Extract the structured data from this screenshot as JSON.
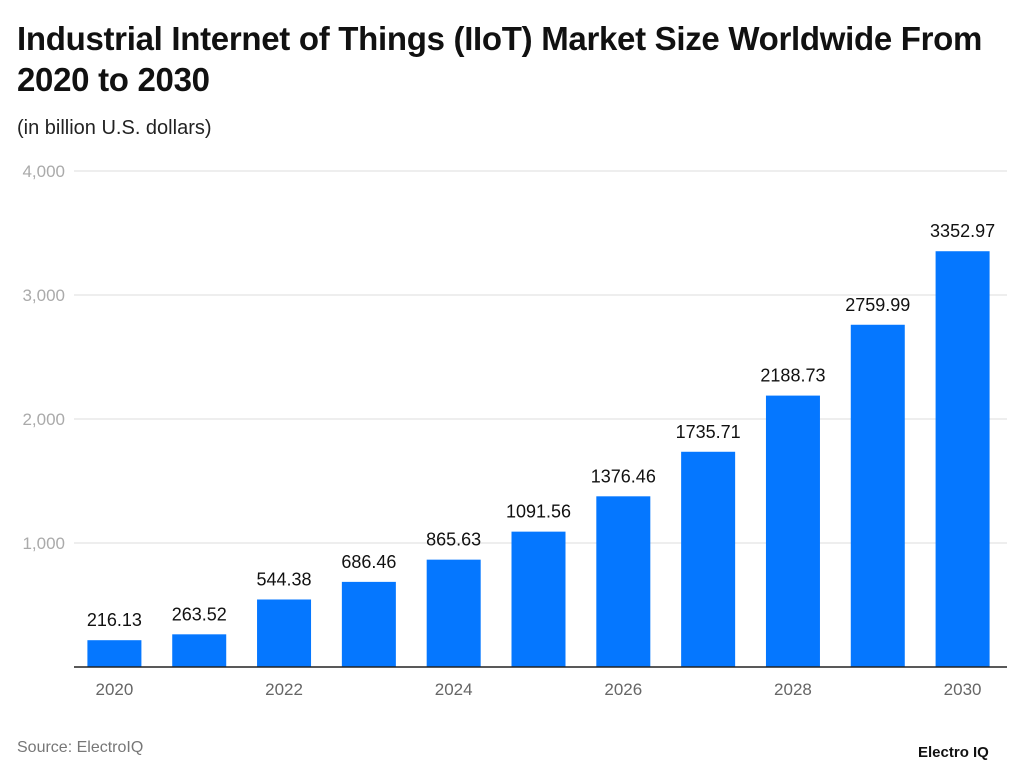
{
  "title": "Industrial Internet of Things (IIoT) Market Size Worldwide From 2020 to 2030",
  "subtitle": "(in billion U.S. dollars)",
  "source": "Source: ElectroIQ",
  "logo": "Electro IQ",
  "chart_data": {
    "type": "bar",
    "title": "Industrial Internet of Things (IIoT) Market Size Worldwide From 2020 to 2030",
    "subtitle": "(in billion U.S. dollars)",
    "categories": [
      "2020",
      "2021",
      "2022",
      "2023",
      "2024",
      "2025",
      "2026",
      "2027",
      "2028",
      "2029",
      "2030"
    ],
    "values": [
      216.13,
      263.52,
      544.38,
      686.46,
      865.63,
      1091.56,
      1376.46,
      1735.71,
      2188.73,
      2759.99,
      3352.97
    ],
    "data_labels": [
      "216.13",
      "263.52",
      "544.38",
      "686.46",
      "865.63",
      "1091.56",
      "1376.46",
      "1735.71",
      "2188.73",
      "2759.99",
      "3352.97"
    ],
    "x_tick_labels": [
      "2020",
      "",
      "2022",
      "",
      "2024",
      "",
      "2026",
      "",
      "2028",
      "",
      "2030"
    ],
    "y_ticks": [
      1000,
      2000,
      3000,
      4000
    ],
    "y_tick_labels": [
      "1,000",
      "2,000",
      "3,000",
      "4,000"
    ],
    "ylim": [
      0,
      4000
    ],
    "grid": true,
    "bar_color": "#0577FF",
    "xlabel": "",
    "ylabel": ""
  }
}
